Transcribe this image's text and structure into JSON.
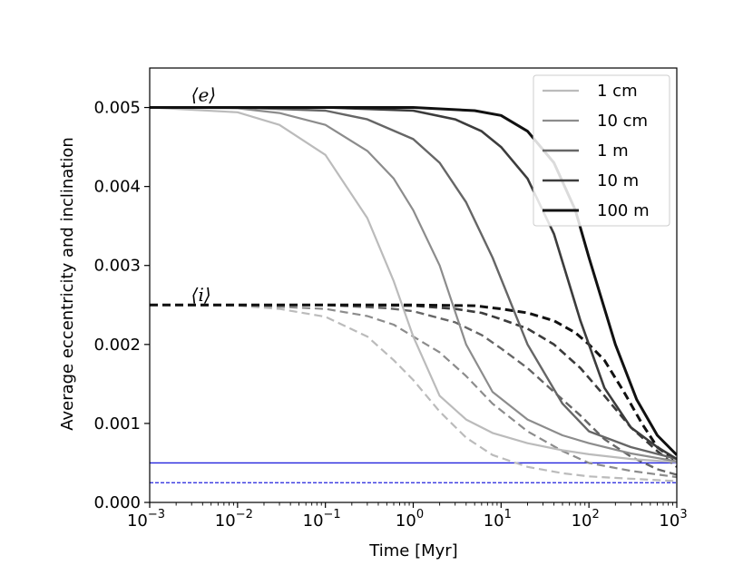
{
  "chart_data": {
    "type": "line",
    "xlabel": "Time [Myr]",
    "ylabel": "Average eccentricity and inclination",
    "xscale": "log",
    "xlim": [
      0.001,
      1000
    ],
    "ylim": [
      0,
      0.0055
    ],
    "x_ticks": [
      {
        "value": 0.001,
        "base": "10",
        "exp": "−3"
      },
      {
        "value": 0.01,
        "base": "10",
        "exp": "−2"
      },
      {
        "value": 0.1,
        "base": "10",
        "exp": "−1"
      },
      {
        "value": 1,
        "base": "10",
        "exp": "0"
      },
      {
        "value": 10,
        "base": "10",
        "exp": "1"
      },
      {
        "value": 100,
        "base": "10",
        "exp": "2"
      },
      {
        "value": 1000,
        "base": "10",
        "exp": "3"
      }
    ],
    "y_ticks": [
      {
        "value": 0.0,
        "label": "0.000"
      },
      {
        "value": 0.001,
        "label": "0.001"
      },
      {
        "value": 0.002,
        "label": "0.002"
      },
      {
        "value": 0.003,
        "label": "0.003"
      },
      {
        "value": 0.004,
        "label": "0.004"
      },
      {
        "value": 0.005,
        "label": "0.005"
      }
    ],
    "annotations": [
      {
        "text": "⟨e⟩",
        "x": 0.005,
        "y": 0.00515
      },
      {
        "text": "⟨i⟩",
        "x": 0.005,
        "y": 0.00262
      }
    ],
    "legend_position": "top-right",
    "series": [
      {
        "name": "1 cm",
        "color": "#bbbbbb",
        "width": 2.2,
        "e": [
          [
            0.001,
            0.005
          ],
          [
            0.01,
            0.00494
          ],
          [
            0.03,
            0.00478
          ],
          [
            0.1,
            0.0044
          ],
          [
            0.3,
            0.0036
          ],
          [
            0.6,
            0.0028
          ],
          [
            1,
            0.0021
          ],
          [
            2,
            0.00135
          ],
          [
            4,
            0.00105
          ],
          [
            8,
            0.00088
          ],
          [
            20,
            0.00075
          ],
          [
            50,
            0.00066
          ],
          [
            100,
            0.00061
          ],
          [
            300,
            0.00055
          ],
          [
            1000,
            0.00051
          ]
        ],
        "i": [
          [
            0.001,
            0.0025
          ],
          [
            0.01,
            0.00249
          ],
          [
            0.03,
            0.00245
          ],
          [
            0.1,
            0.00235
          ],
          [
            0.3,
            0.0021
          ],
          [
            0.6,
            0.0018
          ],
          [
            1,
            0.00155
          ],
          [
            2,
            0.00115
          ],
          [
            4,
            0.00082
          ],
          [
            8,
            0.0006
          ],
          [
            20,
            0.00045
          ],
          [
            50,
            0.00037
          ],
          [
            100,
            0.00033
          ],
          [
            300,
            0.0003
          ],
          [
            1000,
            0.00027
          ]
        ]
      },
      {
        "name": "10 cm",
        "color": "#8c8c8c",
        "width": 2.2,
        "e": [
          [
            0.001,
            0.005
          ],
          [
            0.01,
            0.00499
          ],
          [
            0.03,
            0.00493
          ],
          [
            0.1,
            0.00478
          ],
          [
            0.3,
            0.00445
          ],
          [
            0.6,
            0.0041
          ],
          [
            1,
            0.0037
          ],
          [
            2,
            0.003
          ],
          [
            4,
            0.002
          ],
          [
            8,
            0.0014
          ],
          [
            20,
            0.00105
          ],
          [
            50,
            0.00085
          ],
          [
            100,
            0.00075
          ],
          [
            300,
            0.00062
          ],
          [
            1000,
            0.00052
          ]
        ],
        "i": [
          [
            0.001,
            0.0025
          ],
          [
            0.01,
            0.0025
          ],
          [
            0.1,
            0.00245
          ],
          [
            0.3,
            0.00236
          ],
          [
            0.6,
            0.00225
          ],
          [
            1,
            0.0021
          ],
          [
            2,
            0.0019
          ],
          [
            4,
            0.0016
          ],
          [
            8,
            0.00125
          ],
          [
            20,
            0.0009
          ],
          [
            50,
            0.00065
          ],
          [
            100,
            0.0005
          ],
          [
            300,
            0.0004
          ],
          [
            1000,
            0.00032
          ]
        ]
      },
      {
        "name": "1 m",
        "color": "#666666",
        "width": 2.4,
        "e": [
          [
            0.001,
            0.005
          ],
          [
            0.01,
            0.005
          ],
          [
            0.1,
            0.00496
          ],
          [
            0.3,
            0.00485
          ],
          [
            1,
            0.0046
          ],
          [
            2,
            0.0043
          ],
          [
            4,
            0.0038
          ],
          [
            8,
            0.0031
          ],
          [
            20,
            0.002
          ],
          [
            50,
            0.00125
          ],
          [
            100,
            0.0009
          ],
          [
            300,
            0.0007
          ],
          [
            1000,
            0.00055
          ]
        ],
        "i": [
          [
            0.001,
            0.0025
          ],
          [
            0.01,
            0.0025
          ],
          [
            0.1,
            0.0025
          ],
          [
            0.5,
            0.00246
          ],
          [
            1,
            0.00242
          ],
          [
            3,
            0.00228
          ],
          [
            6,
            0.00212
          ],
          [
            10,
            0.00195
          ],
          [
            20,
            0.0017
          ],
          [
            40,
            0.0014
          ],
          [
            80,
            0.0011
          ],
          [
            150,
            0.0008
          ],
          [
            300,
            0.00058
          ],
          [
            600,
            0.00042
          ],
          [
            1000,
            0.00035
          ]
        ]
      },
      {
        "name": "10 m",
        "color": "#3c3c3c",
        "width": 2.6,
        "e": [
          [
            0.001,
            0.005
          ],
          [
            0.1,
            0.005
          ],
          [
            1,
            0.00496
          ],
          [
            3,
            0.00485
          ],
          [
            6,
            0.0047
          ],
          [
            10,
            0.0045
          ],
          [
            20,
            0.0041
          ],
          [
            40,
            0.0034
          ],
          [
            80,
            0.0023
          ],
          [
            150,
            0.00145
          ],
          [
            300,
            0.00095
          ],
          [
            600,
            0.0007
          ],
          [
            1000,
            0.00055
          ]
        ],
        "i": [
          [
            0.001,
            0.0025
          ],
          [
            0.1,
            0.0025
          ],
          [
            1,
            0.00249
          ],
          [
            3,
            0.00245
          ],
          [
            6,
            0.0024
          ],
          [
            10,
            0.00232
          ],
          [
            20,
            0.0022
          ],
          [
            40,
            0.002
          ],
          [
            80,
            0.0017
          ],
          [
            150,
            0.00135
          ],
          [
            300,
            0.00095
          ],
          [
            600,
            0.00065
          ],
          [
            1000,
            0.00045
          ]
        ]
      },
      {
        "name": "100 m",
        "color": "#111111",
        "width": 3,
        "e": [
          [
            0.001,
            0.005
          ],
          [
            1,
            0.005
          ],
          [
            5,
            0.00496
          ],
          [
            10,
            0.0049
          ],
          [
            20,
            0.0047
          ],
          [
            40,
            0.0043
          ],
          [
            70,
            0.0037
          ],
          [
            100,
            0.0031
          ],
          [
            200,
            0.002
          ],
          [
            350,
            0.0013
          ],
          [
            600,
            0.00085
          ],
          [
            1000,
            0.0006
          ]
        ],
        "i": [
          [
            0.001,
            0.0025
          ],
          [
            1,
            0.0025
          ],
          [
            5,
            0.00249
          ],
          [
            10,
            0.00245
          ],
          [
            20,
            0.0024
          ],
          [
            40,
            0.0023
          ],
          [
            70,
            0.00215
          ],
          [
            100,
            0.002
          ],
          [
            150,
            0.0018
          ],
          [
            250,
            0.0014
          ],
          [
            400,
            0.001
          ],
          [
            600,
            0.0007
          ],
          [
            1000,
            0.00052
          ]
        ]
      }
    ],
    "reference_lines": [
      {
        "y": 0.0005,
        "color": "#2222dd",
        "style": "solid"
      },
      {
        "y": 0.00025,
        "color": "#2222dd",
        "style": "dashed"
      }
    ]
  }
}
